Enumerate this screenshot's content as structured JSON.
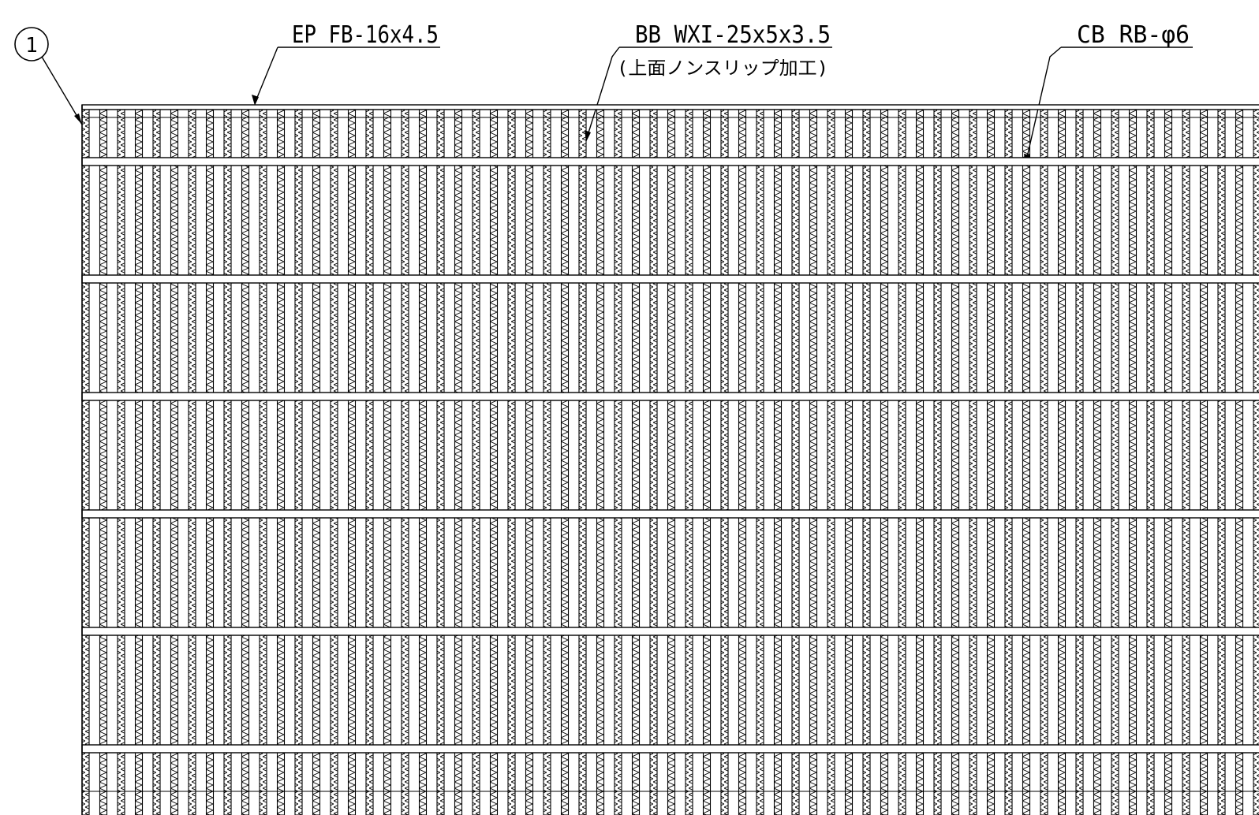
{
  "drawing": {
    "callout": {
      "number": "1"
    },
    "labels": {
      "end_plate": "EP FB-16x4.5",
      "bearing_bar": "BB WXI-25x5x3.5",
      "bearing_bar_note": "(上面ノンスリップ加工)",
      "cross_bar": "CB RB-φ6"
    },
    "grating": {
      "bearing_bar_count": 68,
      "cross_bar_count": 7
    },
    "colors": {
      "line": "#000000",
      "background": "#ffffff"
    }
  }
}
